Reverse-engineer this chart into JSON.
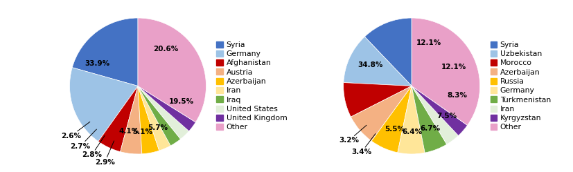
{
  "chart1": {
    "labels": [
      "Syria",
      "Germany",
      "Afghanistan",
      "Austria",
      "Azerbaijan",
      "Iran",
      "Iraq",
      "United States",
      "United Kingdom",
      "Other"
    ],
    "values": [
      20.6,
      19.5,
      5.7,
      5.1,
      4.1,
      2.9,
      2.8,
      2.7,
      2.6,
      33.9
    ],
    "colors": [
      "#4472C4",
      "#9DC3E6",
      "#C00000",
      "#F4B183",
      "#FFC000",
      "#FFE699",
      "#70AD47",
      "#E2EFDA",
      "#7030A0",
      "#E9A0C8"
    ],
    "pct_labels": [
      "20.6%",
      "19.5%",
      "5.7%",
      "5.1%",
      "4.1%",
      "2.9%",
      "2.8%",
      "2.7%",
      "2.6%",
      "33.9%"
    ]
  },
  "chart2": {
    "labels": [
      "Syria",
      "Uzbekistan",
      "Morocco",
      "Azerbaijan",
      "Russia",
      "Germany",
      "Turkmenistan",
      "Iran",
      "Kyrgyzstan",
      "Other"
    ],
    "values": [
      12.1,
      12.1,
      8.3,
      7.5,
      6.7,
      6.4,
      5.5,
      3.4,
      3.2,
      34.8
    ],
    "colors": [
      "#4472C4",
      "#9DC3E6",
      "#C00000",
      "#F4B183",
      "#FFC000",
      "#FFE699",
      "#70AD47",
      "#E2EFDA",
      "#7030A0",
      "#E9A0C8"
    ],
    "pct_labels": [
      "12.1%",
      "12.1%",
      "8.3%",
      "7.5%",
      "6.7%",
      "6.4%",
      "5.5%",
      "3.4%",
      "3.2%",
      "34.8%"
    ]
  },
  "label_fontsize": 7.5,
  "legend_fontsize": 8,
  "background_color": "#FFFFFF"
}
